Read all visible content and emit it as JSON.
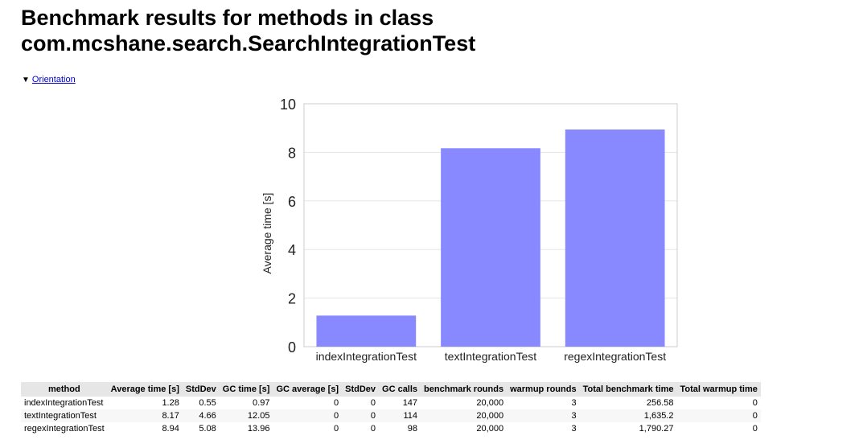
{
  "page": {
    "title_line1": "Benchmark results for methods in class",
    "title_line2": "com.mcshane.search.SearchIntegrationTest",
    "orientation_label": "Orientation",
    "orientation_icon": "triangle-down-icon"
  },
  "chart_data": {
    "type": "bar",
    "categories": [
      "indexIntegrationTest",
      "textIntegrationTest",
      "regexIntegrationTest"
    ],
    "values": [
      1.28,
      8.17,
      8.94
    ],
    "title": "",
    "xlabel": "",
    "ylabel": "Average time [s]",
    "ylim": [
      0,
      10
    ],
    "yticks": [
      "0",
      "2",
      "4",
      "6",
      "8",
      "10"
    ],
    "grid": true,
    "legend": "none",
    "bar_color": "#8888ff"
  },
  "table": {
    "headers": [
      "method",
      "Average time [s]",
      "StdDev",
      "GC time [s]",
      "GC average [s]",
      "StdDev",
      "GC calls",
      "benchmark rounds",
      "warmup rounds",
      "Total benchmark time",
      "Total warmup time"
    ],
    "rows": [
      [
        "indexIntegrationTest",
        "1.28",
        "0.55",
        "0.97",
        "0",
        "0",
        "147",
        "20,000",
        "3",
        "256.58",
        "0"
      ],
      [
        "textIntegrationTest",
        "8.17",
        "4.66",
        "12.05",
        "0",
        "0",
        "114",
        "20,000",
        "3",
        "1,635.2",
        "0"
      ],
      [
        "regexIntegrationTest",
        "8.94",
        "5.08",
        "13.96",
        "0",
        "0",
        "98",
        "20,000",
        "3",
        "1,790.27",
        "0"
      ]
    ]
  }
}
